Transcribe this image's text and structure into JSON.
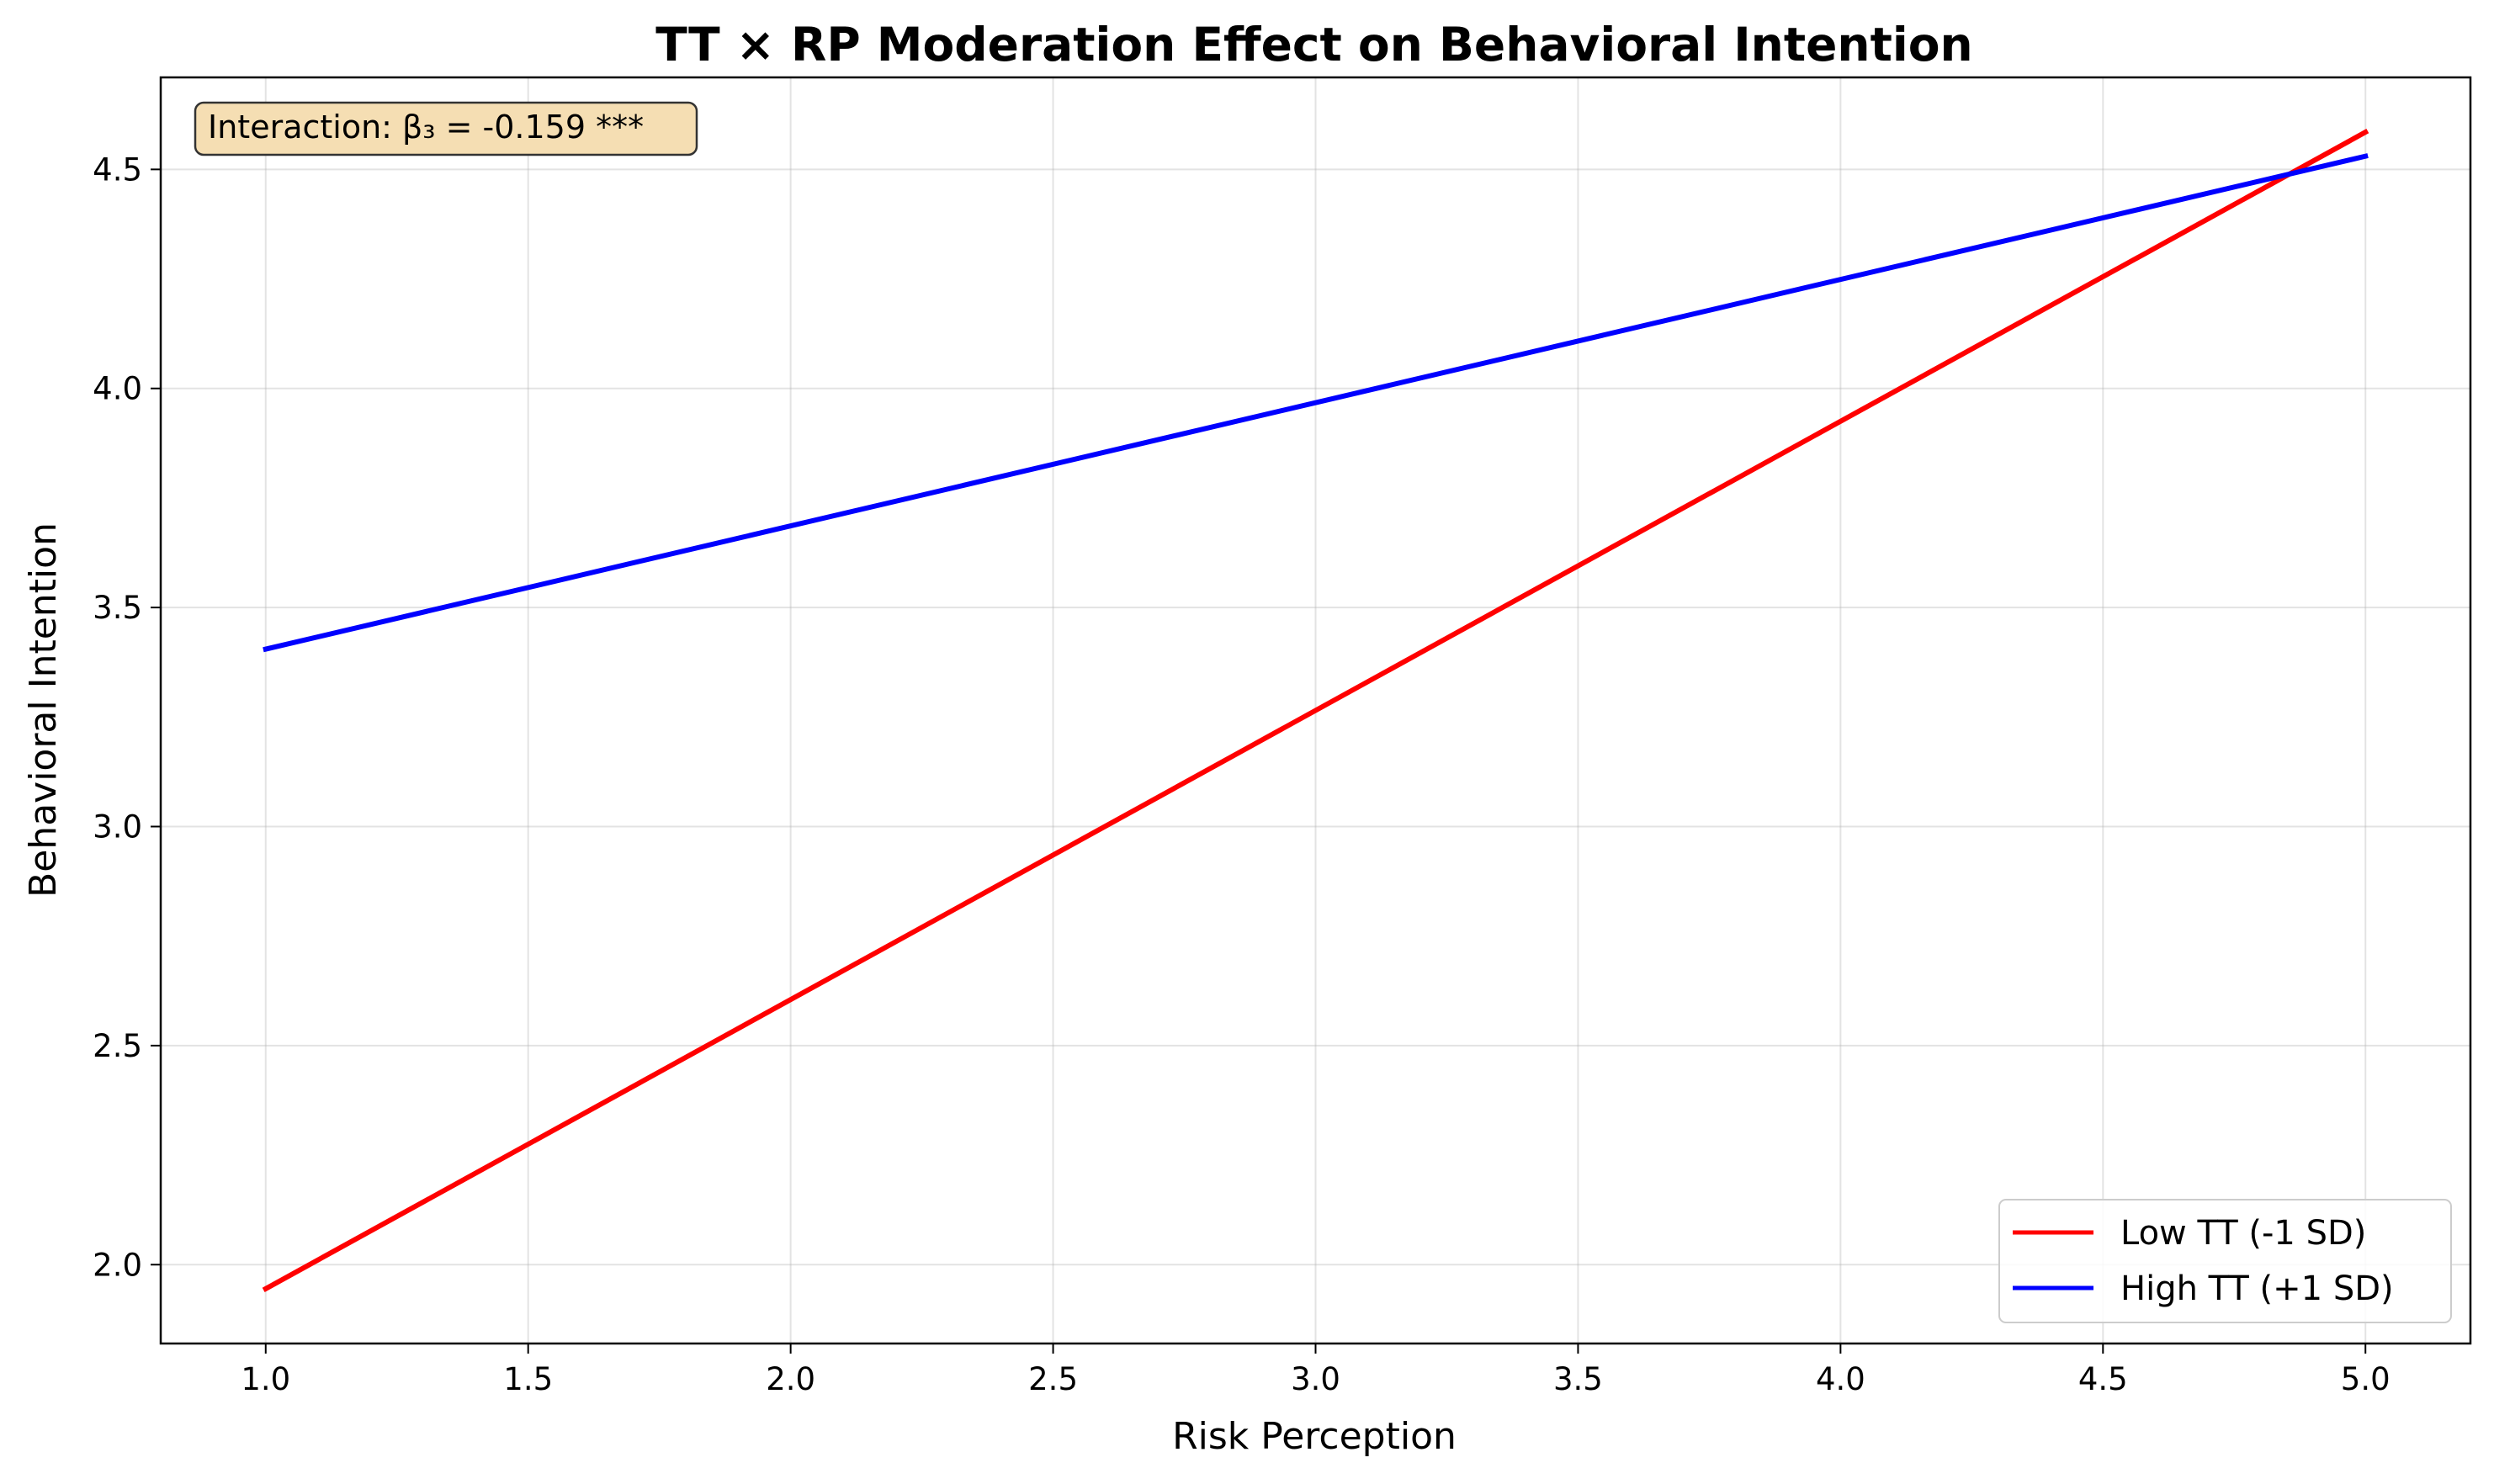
{
  "chart_data": {
    "type": "line",
    "title": "TT × RP Moderation Effect on Behavioral Intention",
    "xlabel": "Risk Perception",
    "ylabel": "Behavioral Intention",
    "xlim": [
      0.8,
      5.2
    ],
    "ylim": [
      1.82,
      4.71
    ],
    "xticks": [
      1.0,
      1.5,
      2.0,
      2.5,
      3.0,
      3.5,
      4.0,
      4.5,
      5.0
    ],
    "xtick_labels": [
      "1.0",
      "1.5",
      "2.0",
      "2.5",
      "3.0",
      "3.5",
      "4.0",
      "4.5",
      "5.0"
    ],
    "yticks": [
      2.0,
      2.5,
      3.0,
      3.5,
      4.0,
      4.5
    ],
    "ytick_labels": [
      "2.0",
      "2.5",
      "3.0",
      "3.5",
      "4.0",
      "4.5"
    ],
    "grid": true,
    "legend_position": "lower-right",
    "series": [
      {
        "name": "Low TT (-1 SD)",
        "color": "#ff0000",
        "x": [
          1.0,
          5.0
        ],
        "y": [
          1.945,
          4.585
        ]
      },
      {
        "name": "High TT (+1 SD)",
        "color": "#0000ff",
        "x": [
          1.0,
          5.0
        ],
        "y": [
          3.405,
          4.53
        ]
      }
    ],
    "annotation": {
      "text": "Interaction: β₃ = -0.159 ***",
      "position": "top-left",
      "background": "#f5deb3"
    }
  }
}
